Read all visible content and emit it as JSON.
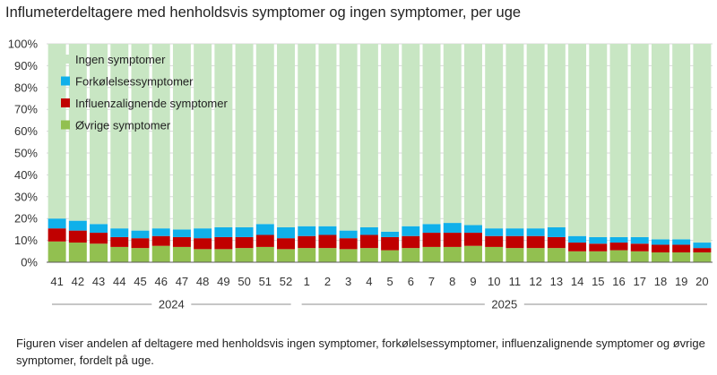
{
  "title": "Influmeterdeltagere med henholdsvis symptomer og ingen symptomer, per uge",
  "caption": "Figuren viser andelen af deltagere med henholdsvis ingen symptomer, forkølelsessymptomer, influenzalignende symptomer og øvrige symptomer, fordelt på uge.",
  "colors": {
    "ingen": "#c8e6c3",
    "forkolelse": "#10b0ea",
    "influenza": "#c00000",
    "ovrige": "#92c050",
    "grid": "#d9d9d9",
    "axis": "#595959"
  },
  "chart_data": {
    "type": "bar",
    "stacked": true,
    "title": "Influmeterdeltagere med henholdsvis symptomer og ingen symptomer, per uge",
    "xlabel": "",
    "ylabel": "",
    "ylim": [
      0,
      100
    ],
    "y_ticks": [
      "0%",
      "10%",
      "20%",
      "30%",
      "40%",
      "50%",
      "60%",
      "70%",
      "80%",
      "90%",
      "100%"
    ],
    "categories": [
      "41",
      "42",
      "43",
      "44",
      "45",
      "46",
      "47",
      "48",
      "49",
      "50",
      "51",
      "52",
      "1",
      "2",
      "3",
      "4",
      "5",
      "6",
      "7",
      "8",
      "9",
      "10",
      "11",
      "12",
      "13",
      "14",
      "15",
      "16",
      "17",
      "18",
      "19",
      "20"
    ],
    "year_groups": [
      {
        "label": "2024",
        "from": 0,
        "to": 11
      },
      {
        "label": "2025",
        "from": 12,
        "to": 31
      }
    ],
    "legend_position": "top-left (inside plot)",
    "series": [
      {
        "name": "Øvrige symptomer",
        "values": [
          9.5,
          9,
          8.5,
          7,
          6.5,
          7.5,
          7,
          6,
          6,
          6.5,
          7,
          6,
          6.5,
          6.5,
          6,
          6.5,
          5.5,
          6.5,
          7,
          7,
          7.5,
          7,
          6.5,
          6.5,
          6.5,
          5,
          5,
          5.5,
          5,
          4.5,
          4.5,
          4.5
        ]
      },
      {
        "name": "Influenzalignende symptomer",
        "values": [
          6,
          5.5,
          5,
          4.5,
          4.5,
          4.5,
          4.5,
          5,
          5.5,
          5,
          5.5,
          5,
          5.5,
          6,
          5,
          6,
          6,
          5.5,
          6.5,
          6.5,
          6,
          5,
          5.5,
          5.5,
          5,
          4,
          3.5,
          3.5,
          3.5,
          3.5,
          3.5,
          2
        ]
      },
      {
        "name": "Forkølelsessymptomer",
        "values": [
          4.5,
          4.5,
          4,
          4,
          3.5,
          3.5,
          3.5,
          4.5,
          4.5,
          4.5,
          5,
          5,
          4.5,
          4,
          3.5,
          3.5,
          2.5,
          4.5,
          4,
          4.5,
          3.5,
          3.5,
          3.5,
          3.5,
          4.5,
          3,
          3,
          2.5,
          3,
          2.5,
          2.5,
          2.5
        ]
      },
      {
        "name": "Ingen symptomer",
        "values": [
          80,
          81,
          82.5,
          84.5,
          85.5,
          84.5,
          85,
          84.5,
          84,
          84,
          82.5,
          84,
          83.5,
          83.5,
          85.5,
          84,
          86,
          83.5,
          82.5,
          82,
          83,
          84.5,
          84.5,
          84.5,
          84,
          88,
          88.5,
          88.5,
          88.5,
          89.5,
          89.5,
          91
        ]
      }
    ],
    "legend_order": [
      "Ingen symptomer",
      "Forkølelsessymptomer",
      "Influenzalignende symptomer",
      "Øvrige symptomer"
    ]
  }
}
